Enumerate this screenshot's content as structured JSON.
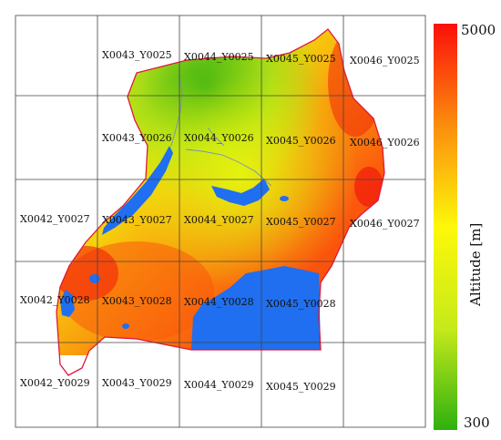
{
  "tiles": [
    {
      "id": "t-43-25",
      "label": "X0043_Y0025"
    },
    {
      "id": "t-44-25",
      "label": "X0044_Y0025"
    },
    {
      "id": "t-45-25",
      "label": "X0045_Y0025"
    },
    {
      "id": "t-46-25",
      "label": "X0046_Y0025"
    },
    {
      "id": "t-43-26",
      "label": "X0043_Y0026"
    },
    {
      "id": "t-44-26",
      "label": "X0044_Y0026"
    },
    {
      "id": "t-45-26",
      "label": "X0045_Y0026"
    },
    {
      "id": "t-46-26",
      "label": "X0046_Y0026"
    },
    {
      "id": "t-42-27",
      "label": "X0042_Y0027"
    },
    {
      "id": "t-43-27",
      "label": "X0043_Y0027"
    },
    {
      "id": "t-44-27",
      "label": "X0044_Y0027"
    },
    {
      "id": "t-45-27",
      "label": "X0045_Y0027"
    },
    {
      "id": "t-46-27",
      "label": "X0046_Y0027"
    },
    {
      "id": "t-42-28",
      "label": "X0042_Y0028"
    },
    {
      "id": "t-43-28",
      "label": "X0043_Y0028"
    },
    {
      "id": "t-44-28",
      "label": "X0044_Y0028"
    },
    {
      "id": "t-45-28",
      "label": "X0045_Y0028"
    },
    {
      "id": "t-42-29",
      "label": "X0042_Y0029"
    },
    {
      "id": "t-43-29",
      "label": "X0043_Y0029"
    },
    {
      "id": "t-44-29",
      "label": "X0044_Y0029"
    },
    {
      "id": "t-45-29",
      "label": "X0045_Y0029"
    }
  ],
  "colorbar": {
    "title": "Altitude  [m]",
    "max_label": "5000",
    "min_label": "300",
    "colors": [
      "#2fb00f",
      "#c6ea1a",
      "#fdf80a",
      "#fb8d0d",
      "#fb0f0a"
    ]
  },
  "colors": {
    "water": "#1f6ff0",
    "border": "#e0183a",
    "grid": "#444444",
    "river": "#7a8fb8"
  }
}
